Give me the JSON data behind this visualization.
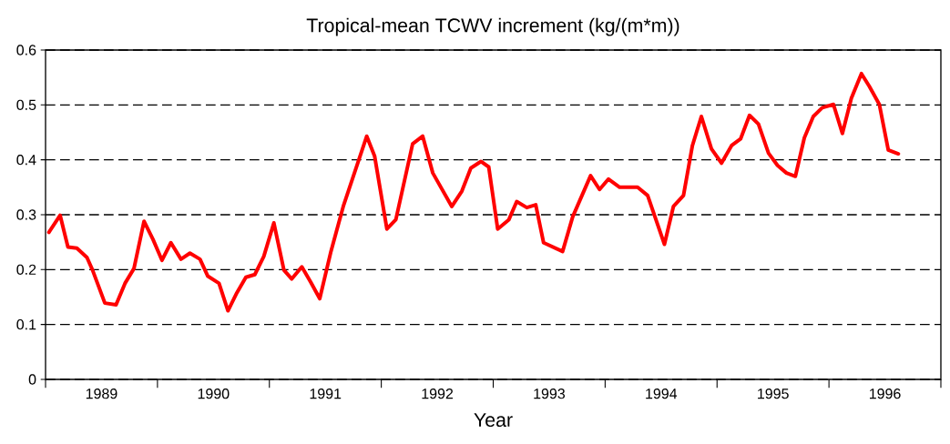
{
  "chart_data": {
    "type": "line",
    "title": "Tropical-mean TCWV increment (kg/(m*m))",
    "xlabel": "Year",
    "x": [
      1989.03,
      1989.13,
      1989.2,
      1989.28,
      1989.37,
      1989.42,
      1989.53,
      1989.63,
      1989.71,
      1989.79,
      1989.88,
      1989.96,
      1990.04,
      1990.12,
      1990.21,
      1990.29,
      1990.38,
      1990.45,
      1990.55,
      1990.63,
      1990.71,
      1990.79,
      1990.87,
      1990.95,
      1991.04,
      1991.13,
      1991.2,
      1991.29,
      1991.37,
      1991.45,
      1991.55,
      1991.66,
      1991.87,
      1991.94,
      1992.05,
      1992.13,
      1992.28,
      1992.37,
      1992.46,
      1992.63,
      1992.72,
      1992.8,
      1992.89,
      1992.96,
      1993.04,
      1993.14,
      1993.21,
      1993.3,
      1993.38,
      1993.45,
      1993.62,
      1993.71,
      1993.87,
      1993.95,
      1994.03,
      1994.13,
      1994.29,
      1994.38,
      1994.53,
      1994.61,
      1994.7,
      1994.78,
      1994.86,
      1994.95,
      1995.04,
      1995.13,
      1995.21,
      1995.29,
      1995.37,
      1995.46,
      1995.54,
      1995.62,
      1995.7,
      1995.78,
      1995.86,
      1995.94,
      1996.04,
      1996.12,
      1996.2,
      1996.29,
      1996.36,
      1996.45,
      1996.53,
      1996.62
    ],
    "series": [
      {
        "color": "#ff0000",
        "values": [
          0.268,
          0.299,
          0.241,
          0.239,
          0.222,
          0.199,
          0.139,
          0.136,
          0.175,
          0.202,
          0.288,
          0.255,
          0.217,
          0.249,
          0.219,
          0.23,
          0.219,
          0.188,
          0.175,
          0.125,
          0.158,
          0.186,
          0.191,
          0.224,
          0.285,
          0.199,
          0.183,
          0.205,
          0.177,
          0.147,
          0.233,
          0.315,
          0.443,
          0.407,
          0.274,
          0.291,
          0.429,
          0.443,
          0.376,
          0.315,
          0.343,
          0.385,
          0.397,
          0.387,
          0.274,
          0.291,
          0.324,
          0.313,
          0.318,
          0.249,
          0.233,
          0.296,
          0.371,
          0.346,
          0.365,
          0.35,
          0.35,
          0.335,
          0.246,
          0.315,
          0.335,
          0.426,
          0.479,
          0.42,
          0.394,
          0.426,
          0.438,
          0.481,
          0.465,
          0.412,
          0.39,
          0.376,
          0.37,
          0.44,
          0.479,
          0.495,
          0.501,
          0.448,
          0.512,
          0.557,
          0.534,
          0.501,
          0.418,
          0.411
        ]
      }
    ],
    "xlim": [
      1989,
      1997
    ],
    "xticks": [
      {
        "value": 1989,
        "label": null
      },
      {
        "value": 1989.5,
        "label": "1989"
      },
      {
        "value": 1990,
        "label": null
      },
      {
        "value": 1990.5,
        "label": "1990"
      },
      {
        "value": 1991,
        "label": null
      },
      {
        "value": 1991.5,
        "label": "1991"
      },
      {
        "value": 1992,
        "label": null
      },
      {
        "value": 1992.5,
        "label": "1992"
      },
      {
        "value": 1993,
        "label": null
      },
      {
        "value": 1993.5,
        "label": "1993"
      },
      {
        "value": 1994,
        "label": null
      },
      {
        "value": 1994.5,
        "label": "1994"
      },
      {
        "value": 1995,
        "label": null
      },
      {
        "value": 1995.5,
        "label": "1995"
      },
      {
        "value": 1996,
        "label": null
      },
      {
        "value": 1996.5,
        "label": "1996"
      },
      {
        "value": 1997,
        "label": null
      }
    ],
    "ylim": [
      0,
      0.6
    ],
    "yticks": [
      0,
      0.1,
      0.2,
      0.3,
      0.4,
      0.5,
      0.6
    ],
    "grid": "y",
    "line_style": "solid",
    "marker": "none"
  }
}
